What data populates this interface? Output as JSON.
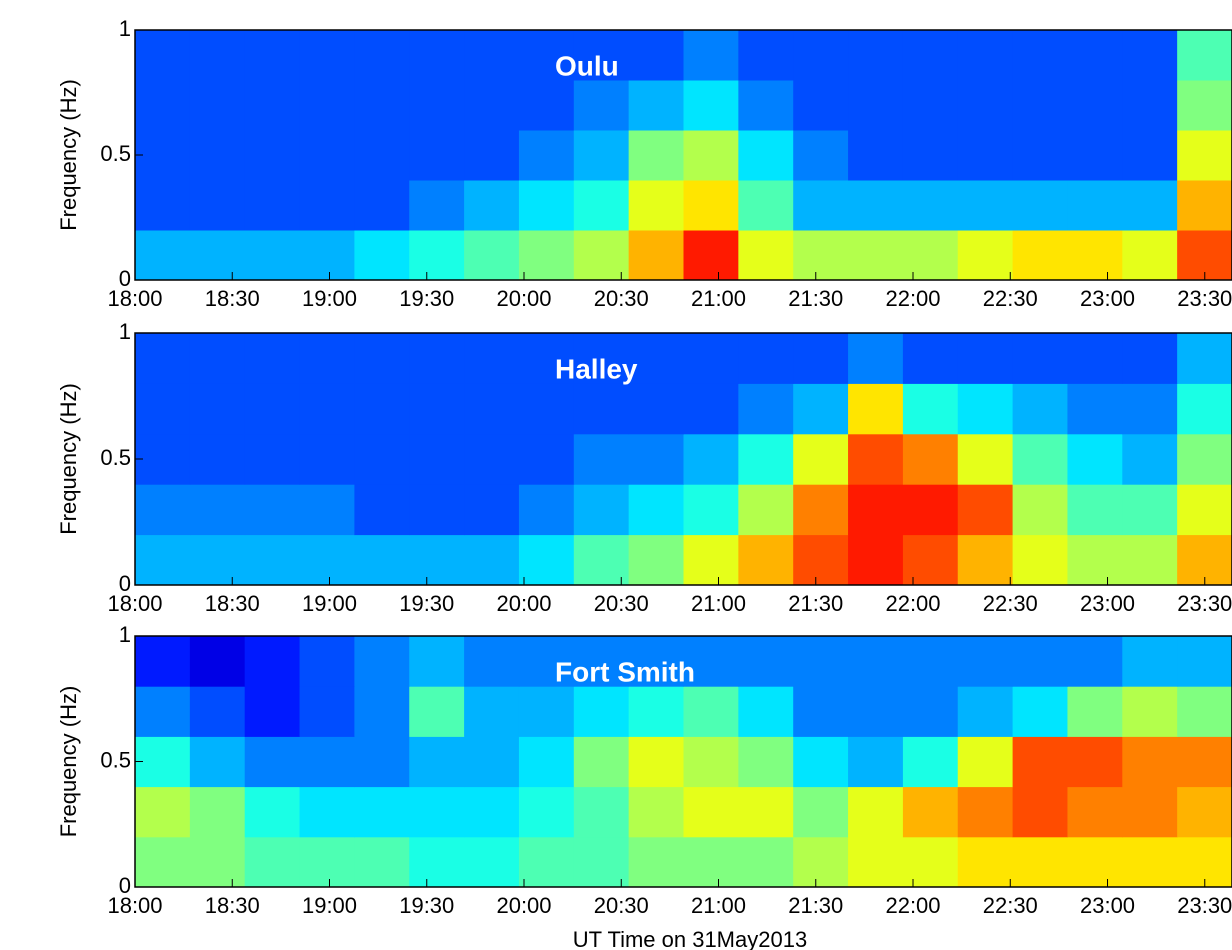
{
  "chart_data": [
    {
      "type": "heatmap",
      "title": "Oulu",
      "ylabel": "Frequency (Hz)",
      "xlim": [
        18,
        23.64
      ],
      "ylim": [
        0,
        1
      ],
      "yticks": [
        0,
        0.5,
        1
      ],
      "xticks": [
        {
          "value": 18,
          "label": "18:00"
        },
        {
          "value": 18.5,
          "label": "18:30"
        },
        {
          "value": 19,
          "label": "19:00"
        },
        {
          "value": 19.5,
          "label": "19:30"
        },
        {
          "value": 20,
          "label": "20:00"
        },
        {
          "value": 20.5,
          "label": "20:30"
        },
        {
          "value": 21,
          "label": "21:00"
        },
        {
          "value": 21.5,
          "label": "21:30"
        },
        {
          "value": 22,
          "label": "22:00"
        },
        {
          "value": 22.5,
          "label": "22:30"
        },
        {
          "value": 23,
          "label": "23:00"
        },
        {
          "value": 23.5,
          "label": "23:30"
        }
      ],
      "z": [
        [
          0.3,
          0.3,
          0.3,
          0.3,
          0.35,
          0.4,
          0.45,
          0.5,
          0.55,
          0.7,
          0.85,
          0.6,
          0.55,
          0.55,
          0.55,
          0.6,
          0.65,
          0.65,
          0.6,
          0.8
        ],
        [
          0.2,
          0.2,
          0.2,
          0.2,
          0.2,
          0.25,
          0.3,
          0.35,
          0.4,
          0.6,
          0.65,
          0.45,
          0.3,
          0.3,
          0.3,
          0.3,
          0.3,
          0.3,
          0.3,
          0.7
        ],
        [
          0.2,
          0.2,
          0.2,
          0.2,
          0.2,
          0.2,
          0.2,
          0.25,
          0.3,
          0.5,
          0.55,
          0.35,
          0.25,
          0.2,
          0.2,
          0.2,
          0.2,
          0.2,
          0.2,
          0.6
        ],
        [
          0.2,
          0.2,
          0.2,
          0.2,
          0.2,
          0.2,
          0.2,
          0.2,
          0.25,
          0.3,
          0.35,
          0.25,
          0.2,
          0.2,
          0.2,
          0.2,
          0.2,
          0.2,
          0.2,
          0.5
        ],
        [
          0.2,
          0.2,
          0.2,
          0.2,
          0.2,
          0.2,
          0.2,
          0.2,
          0.2,
          0.2,
          0.25,
          0.2,
          0.2,
          0.2,
          0.2,
          0.2,
          0.2,
          0.2,
          0.2,
          0.45
        ]
      ]
    },
    {
      "type": "heatmap",
      "title": "Halley",
      "ylabel": "Frequency (Hz)",
      "xlim": [
        18,
        23.64
      ],
      "ylim": [
        0,
        1
      ],
      "yticks": [
        0,
        0.5,
        1
      ],
      "xticks": [
        {
          "value": 18,
          "label": "18:00"
        },
        {
          "value": 18.5,
          "label": "18:30"
        },
        {
          "value": 19,
          "label": "19:00"
        },
        {
          "value": 19.5,
          "label": "19:30"
        },
        {
          "value": 20,
          "label": "20:00"
        },
        {
          "value": 20.5,
          "label": "20:30"
        },
        {
          "value": 21,
          "label": "21:00"
        },
        {
          "value": 21.5,
          "label": "21:30"
        },
        {
          "value": 22,
          "label": "22:00"
        },
        {
          "value": 22.5,
          "label": "22:30"
        },
        {
          "value": 23,
          "label": "23:00"
        },
        {
          "value": 23.5,
          "label": "23:30"
        }
      ],
      "z": [
        [
          0.3,
          0.3,
          0.3,
          0.3,
          0.3,
          0.3,
          0.3,
          0.35,
          0.45,
          0.5,
          0.6,
          0.7,
          0.8,
          0.85,
          0.8,
          0.7,
          0.6,
          0.55,
          0.55,
          0.7
        ],
        [
          0.25,
          0.25,
          0.25,
          0.25,
          0.2,
          0.2,
          0.2,
          0.25,
          0.3,
          0.35,
          0.4,
          0.55,
          0.75,
          0.85,
          0.85,
          0.8,
          0.55,
          0.45,
          0.45,
          0.6
        ],
        [
          0.2,
          0.2,
          0.2,
          0.2,
          0.2,
          0.2,
          0.2,
          0.2,
          0.25,
          0.25,
          0.3,
          0.4,
          0.6,
          0.8,
          0.75,
          0.6,
          0.45,
          0.35,
          0.3,
          0.5
        ],
        [
          0.2,
          0.2,
          0.2,
          0.2,
          0.2,
          0.2,
          0.2,
          0.2,
          0.2,
          0.2,
          0.2,
          0.25,
          0.3,
          0.65,
          0.4,
          0.35,
          0.3,
          0.25,
          0.25,
          0.4
        ],
        [
          0.2,
          0.2,
          0.2,
          0.2,
          0.2,
          0.2,
          0.2,
          0.2,
          0.2,
          0.2,
          0.2,
          0.2,
          0.2,
          0.25,
          0.2,
          0.2,
          0.2,
          0.2,
          0.2,
          0.3
        ]
      ]
    },
    {
      "type": "heatmap",
      "title": "Fort Smith",
      "ylabel": "Frequency (Hz)",
      "xlabel": "UT Time on 31May2013",
      "xlim": [
        18,
        23.64
      ],
      "ylim": [
        0,
        1
      ],
      "yticks": [
        0,
        0.5,
        1
      ],
      "xticks": [
        {
          "value": 18,
          "label": "18:00"
        },
        {
          "value": 18.5,
          "label": "18:30"
        },
        {
          "value": 19,
          "label": "19:00"
        },
        {
          "value": 19.5,
          "label": "19:30"
        },
        {
          "value": 20,
          "label": "20:00"
        },
        {
          "value": 20.5,
          "label": "20:30"
        },
        {
          "value": 21,
          "label": "21:00"
        },
        {
          "value": 21.5,
          "label": "21:30"
        },
        {
          "value": 22,
          "label": "22:00"
        },
        {
          "value": 22.5,
          "label": "22:30"
        },
        {
          "value": 23,
          "label": "23:00"
        },
        {
          "value": 23.5,
          "label": "23:30"
        }
      ],
      "z": [
        [
          0.5,
          0.5,
          0.45,
          0.45,
          0.45,
          0.4,
          0.4,
          0.45,
          0.45,
          0.5,
          0.5,
          0.5,
          0.55,
          0.6,
          0.6,
          0.65,
          0.65,
          0.65,
          0.65,
          0.65
        ],
        [
          0.55,
          0.5,
          0.4,
          0.35,
          0.35,
          0.35,
          0.35,
          0.4,
          0.45,
          0.55,
          0.6,
          0.6,
          0.5,
          0.6,
          0.7,
          0.75,
          0.8,
          0.75,
          0.75,
          0.7
        ],
        [
          0.4,
          0.3,
          0.25,
          0.25,
          0.25,
          0.3,
          0.3,
          0.35,
          0.5,
          0.6,
          0.55,
          0.5,
          0.35,
          0.3,
          0.4,
          0.6,
          0.8,
          0.8,
          0.75,
          0.75
        ],
        [
          0.25,
          0.2,
          0.15,
          0.2,
          0.25,
          0.45,
          0.3,
          0.3,
          0.35,
          0.4,
          0.45,
          0.35,
          0.25,
          0.25,
          0.25,
          0.3,
          0.35,
          0.5,
          0.55,
          0.5
        ],
        [
          0.15,
          0.1,
          0.15,
          0.2,
          0.25,
          0.3,
          0.25,
          0.25,
          0.25,
          0.25,
          0.25,
          0.25,
          0.25,
          0.25,
          0.25,
          0.25,
          0.25,
          0.25,
          0.3,
          0.3
        ]
      ]
    }
  ]
}
